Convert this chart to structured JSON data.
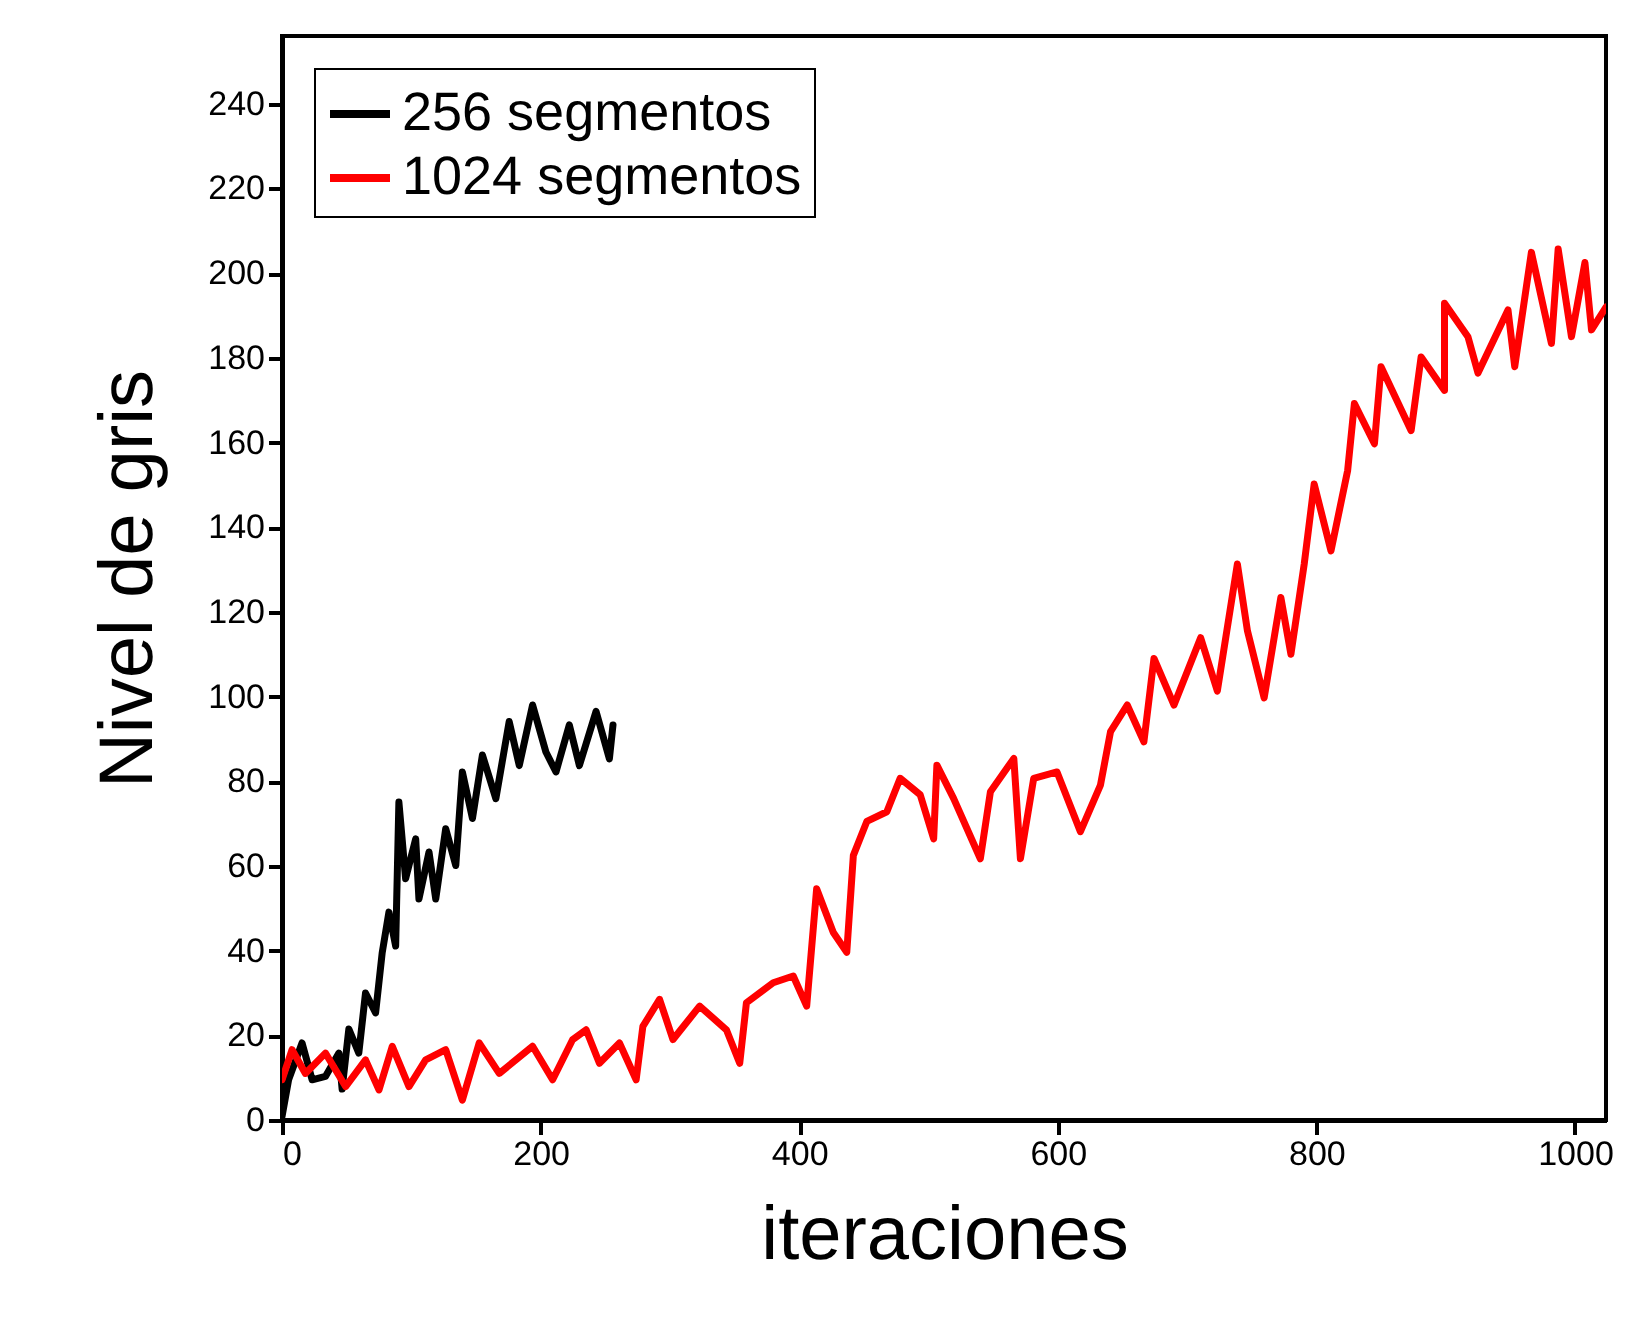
{
  "chart_data": {
    "type": "line",
    "xlabel": "iteraciones",
    "ylabel": "Nivel de gris",
    "xlim": [
      0,
      1024
    ],
    "ylim": [
      0,
      256
    ],
    "xticks": [
      0,
      200,
      400,
      600,
      800,
      1000
    ],
    "yticks": [
      0,
      20,
      40,
      60,
      80,
      100,
      120,
      140,
      160,
      180,
      200,
      220,
      240
    ],
    "legend": "top left",
    "line_style": "solid",
    "marker": "none",
    "series": [
      {
        "name": "256 segmentos",
        "color": "#000000",
        "x": [
          0,
          5.1,
          15.5,
          23.3,
          33.6,
          44,
          46.5,
          51.7,
          59.4,
          64.6,
          72.4,
          77.5,
          82.7,
          87.9,
          90.4,
          95.6,
          103.4,
          105.9,
          113.7,
          118.9,
          126.6,
          134.4,
          139.5,
          147.3,
          155,
          165.4,
          175.7,
          183.5,
          193.8,
          204.1,
          211.9,
          222.2,
          230,
          242.9,
          253.2,
          256
        ],
        "values": [
          0.8,
          9.5,
          18.2,
          9.5,
          10.3,
          15.8,
          7.3,
          21.5,
          15.8,
          30,
          25.3,
          39.5,
          49.1,
          41.1,
          75.1,
          57,
          66.4,
          52.2,
          63.3,
          52.2,
          68.8,
          60.1,
          82.2,
          71.2,
          86.2,
          75.9,
          94.1,
          83.7,
          98,
          86.9,
          82.2,
          93.3,
          83.7,
          96.5,
          85.3,
          93.3
        ]
      },
      {
        "name": "1024 segmentos",
        "color": "#ff0000",
        "x": [
          0,
          7.8,
          18.1,
          33.6,
          49.2,
          64.6,
          75,
          85.3,
          98.2,
          111.1,
          126.6,
          139.5,
          152.5,
          168,
          193.8,
          209.3,
          224.8,
          235.2,
          245.5,
          261,
          273.9,
          279.1,
          292,
          302.4,
          323,
          343.7,
          354,
          359.2,
          379.9,
          395.4,
          405.8,
          413.5,
          426.4,
          436.8,
          441.9,
          452.3,
          467.8,
          478.1,
          493.6,
          504,
          506.5,
          519.5,
          540.1,
          547.9,
          566,
          571.1,
          581.4,
          599.4,
          617.5,
          633,
          640.8,
          653.7,
          666.6,
          674.4,
          689.9,
          710.5,
          723.4,
          738.9,
          746.7,
          759.6,
          772.5,
          780.3,
          790.6,
          798.3,
          811.3,
          824.2,
          829.4,
          844.9,
          850,
          873.3,
          881,
          899.1,
          899.1,
          917.2,
          925,
          948.2,
          953.4,
          966.3,
          981.8,
          987,
          997.3,
          1007.7,
          1012.8,
          1024
        ],
        "values": [
          9.5,
          16.6,
          11,
          15.8,
          7.9,
          14.2,
          7.1,
          17.4,
          7.9,
          14.2,
          16.6,
          4.7,
          18.2,
          11,
          17.4,
          9.5,
          19,
          21.3,
          13.4,
          18.2,
          9.5,
          22.1,
          28.5,
          19,
          26.9,
          21.3,
          13.4,
          27.7,
          32.4,
          34,
          26.9,
          54.6,
          44.3,
          39.6,
          62.5,
          70.5,
          72.8,
          80.7,
          76.8,
          66.4,
          83.8,
          75.9,
          61.7,
          77.5,
          85.4,
          61.7,
          80.7,
          82.2,
          68.1,
          79.1,
          91.7,
          98,
          89.3,
          109,
          98,
          113.9,
          101.3,
          131.3,
          115.5,
          99.7,
          123.4,
          110,
          131.3,
          150.2,
          134.4,
          153.4,
          169.2,
          159.7,
          177.9,
          162.8,
          180.2,
          172.3,
          192.9,
          185,
          176.4,
          191.3,
          177.9,
          204.9,
          183.4,
          205.7,
          185,
          202.5,
          186.6,
          192
        ]
      }
    ]
  }
}
